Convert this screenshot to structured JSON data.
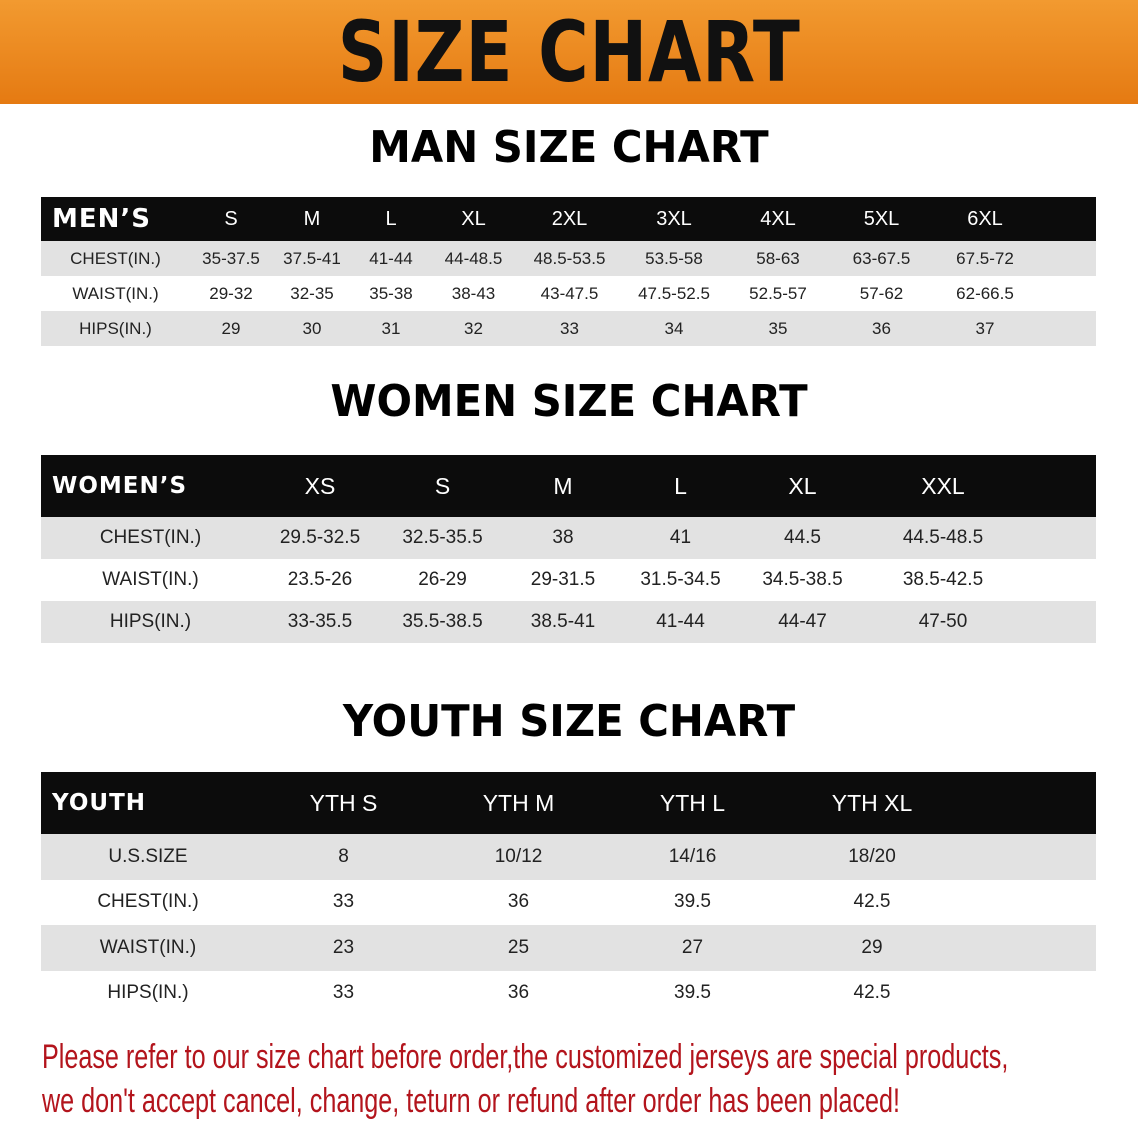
{
  "banner_title": "SIZE CHART",
  "men": {
    "title": "MAN SIZE CHART",
    "header": [
      "MEN’S",
      "S",
      "M",
      "L",
      "XL",
      "2XL",
      "3XL",
      "4XL",
      "5XL",
      "6XL"
    ],
    "rows": [
      [
        "CHEST(IN.)",
        "35-37.5",
        "37.5-41",
        "41-44",
        "44-48.5",
        "48.5-53.5",
        "53.5-58",
        "58-63",
        "63-67.5",
        "67.5-72"
      ],
      [
        "WAIST(IN.)",
        "29-32",
        "32-35",
        "35-38",
        "38-43",
        "43-47.5",
        "47.5-52.5",
        "52.5-57",
        "57-62",
        "62-66.5"
      ],
      [
        "HIPS(IN.)",
        "29",
        "30",
        "31",
        "32",
        "33",
        "34",
        "35",
        "36",
        "37"
      ]
    ]
  },
  "women": {
    "title": "WOMEN SIZE CHART",
    "header": [
      "WOMEN’S",
      "XS",
      "S",
      "M",
      "L",
      "XL",
      "XXL"
    ],
    "rows": [
      [
        "CHEST(IN.)",
        "29.5-32.5",
        "32.5-35.5",
        "38",
        "41",
        "44.5",
        "44.5-48.5"
      ],
      [
        "WAIST(IN.)",
        "23.5-26",
        "26-29",
        "29-31.5",
        "31.5-34.5",
        "34.5-38.5",
        "38.5-42.5"
      ],
      [
        "HIPS(IN.)",
        "33-35.5",
        "35.5-38.5",
        "38.5-41",
        "41-44",
        "44-47",
        "47-50"
      ]
    ]
  },
  "youth": {
    "title": "YOUTH SIZE CHART",
    "header": [
      "YOUTH",
      "YTH S",
      "YTH M",
      "YTH L",
      "YTH XL"
    ],
    "rows": [
      [
        "U.S.SIZE",
        "8",
        "10/12",
        "14/16",
        "18/20"
      ],
      [
        "CHEST(IN.)",
        "33",
        "36",
        "39.5",
        "42.5"
      ],
      [
        "WAIST(IN.)",
        "23",
        "25",
        "27",
        "29"
      ],
      [
        "HIPS(IN.)",
        "33",
        "36",
        "39.5",
        "42.5"
      ]
    ]
  },
  "notice": {
    "line1": "Please refer to our size chart before order,the customized jerseys are special products,",
    "line2": "we don't accept cancel, change, teturn or refund after order has been placed!"
  },
  "colors": {
    "banner": "#e57a12",
    "header": "#0c0c0c",
    "stripe": "#e2e2e2",
    "notice": "#b3141c"
  }
}
